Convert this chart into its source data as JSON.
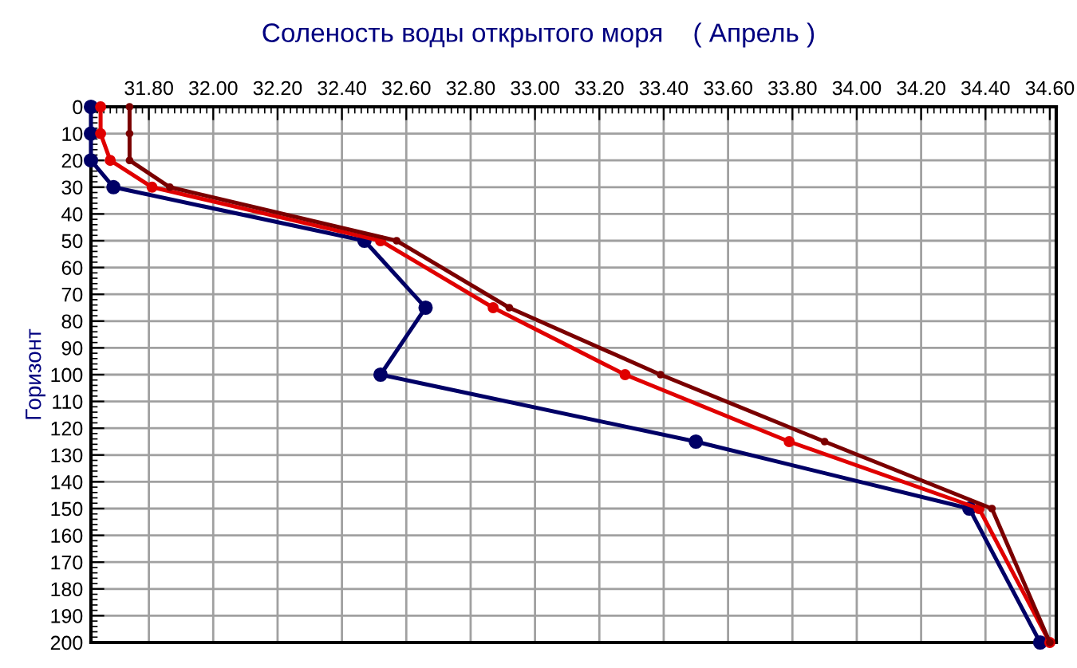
{
  "chart_data": {
    "type": "line",
    "title": "Соленость воды открытого моря    ( Апрель )",
    "ylabel": "Горизонт",
    "series": [
      {
        "color": "#000066",
        "x": [
          31.62,
          31.62,
          31.62,
          31.69,
          32.47,
          32.66,
          32.52,
          33.5,
          34.35,
          34.57
        ],
        "values": [
          0,
          10,
          20,
          30,
          50,
          75,
          100,
          125,
          150,
          200
        ]
      },
      {
        "color": "#e00000",
        "x": [
          31.65,
          31.65,
          31.68,
          31.81,
          32.52,
          32.87,
          33.28,
          33.79,
          34.38,
          34.6
        ],
        "values": [
          0,
          10,
          20,
          30,
          50,
          75,
          100,
          125,
          150,
          200
        ]
      },
      {
        "color": "#7a0000",
        "x": [
          31.74,
          31.74,
          31.74,
          31.865,
          32.57,
          32.92,
          33.39,
          33.9,
          34.42,
          34.6
        ],
        "values": [
          0,
          10,
          20,
          30,
          50,
          75,
          100,
          125,
          150,
          200
        ]
      }
    ],
    "xlim": [
      31.62,
      34.62
    ],
    "ylim": [
      200,
      0
    ],
    "xticks": [
      {
        "value": 31.8,
        "label": "31.80"
      },
      {
        "value": 32.0,
        "label": "32.00"
      },
      {
        "value": 32.2,
        "label": "32.20"
      },
      {
        "value": 32.4,
        "label": "32.40"
      },
      {
        "value": 32.6,
        "label": "32.60"
      },
      {
        "value": 32.8,
        "label": "32.80"
      },
      {
        "value": 33.0,
        "label": "33.00"
      },
      {
        "value": 33.2,
        "label": "33.20"
      },
      {
        "value": 33.4,
        "label": "33.40"
      },
      {
        "value": 33.6,
        "label": "33.60"
      },
      {
        "value": 33.8,
        "label": "33.80"
      },
      {
        "value": 34.0,
        "label": "34.00"
      },
      {
        "value": 34.2,
        "label": "34.20"
      },
      {
        "value": 34.4,
        "label": "34.40"
      },
      {
        "value": 34.6,
        "label": "34.60"
      }
    ],
    "yticks": [
      0,
      10,
      20,
      30,
      40,
      50,
      60,
      70,
      80,
      90,
      100,
      110,
      120,
      130,
      140,
      150,
      160,
      170,
      180,
      190,
      200
    ],
    "grid": true,
    "marker": "circle",
    "line_style": "solid",
    "legend": false
  }
}
